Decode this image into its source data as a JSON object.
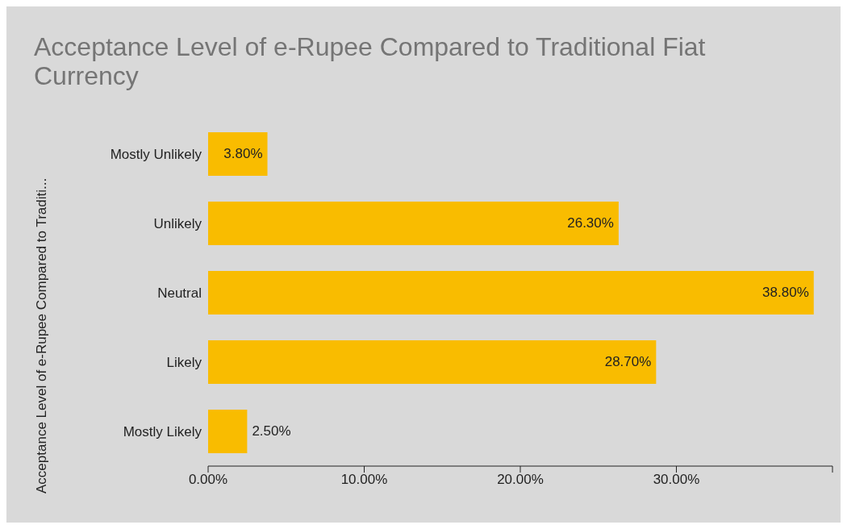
{
  "chart_data": {
    "type": "bar",
    "orientation": "horizontal",
    "title": "Acceptance Level of e-Rupee Compared to Traditional Fiat Currency",
    "ylabel": "Acceptance Level of e-Rupee Compared to Traditi...",
    "categories": [
      "Mostly Unlikely",
      "Unlikely",
      "Neutral",
      "Likely",
      "Mostly Likely"
    ],
    "values": [
      3.8,
      26.3,
      38.8,
      28.7,
      2.5
    ],
    "value_labels": [
      "3.80%",
      "26.30%",
      "38.80%",
      "28.70%",
      "2.50%"
    ],
    "color": "#f9bc00",
    "xlim": [
      0,
      40
    ],
    "xticks": [
      {
        "value": 0,
        "label": "0.00%"
      },
      {
        "value": 10,
        "label": "10.00%"
      },
      {
        "value": 20,
        "label": "20.00%"
      },
      {
        "value": 30,
        "label": "30.00%"
      },
      {
        "value": 40,
        "label": null
      }
    ],
    "grid": false,
    "legend": false
  }
}
